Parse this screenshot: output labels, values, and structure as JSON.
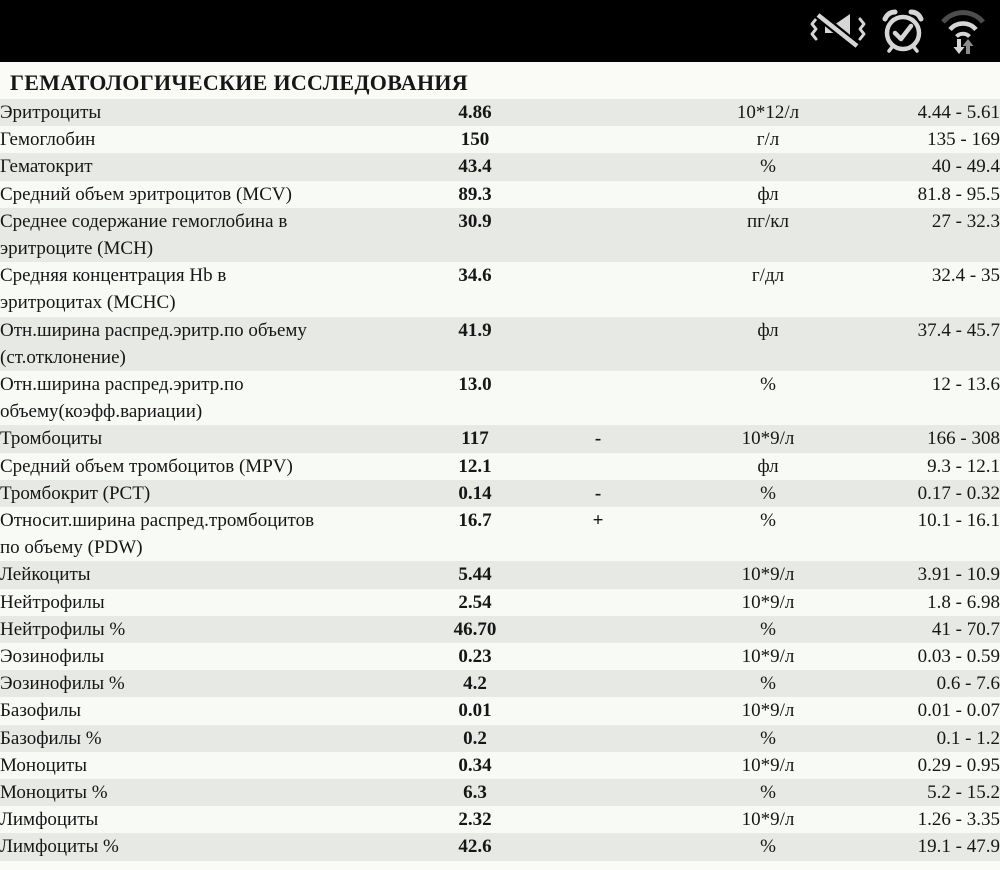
{
  "status_bar": {
    "icons": [
      {
        "name": "vibrate-mute-icon"
      },
      {
        "name": "alarm-set-icon"
      },
      {
        "name": "wifi-data-transfer-icon"
      }
    ]
  },
  "report": {
    "section_title": "ГЕМАТОЛОГИЧЕСКИЕ ИССЛЕДОВАНИЯ",
    "columns": [
      "test",
      "value",
      "flag",
      "unit",
      "reference"
    ],
    "rows": [
      {
        "test": "Эритроциты",
        "value": "4.86",
        "flag": "",
        "unit": "10*12/л",
        "reference": "4.44 - 5.61"
      },
      {
        "test": "Гемоглобин",
        "value": "150",
        "flag": "",
        "unit": "г/л",
        "reference": "135 - 169"
      },
      {
        "test": "Гематокрит",
        "value": "43.4",
        "flag": "",
        "unit": "%",
        "reference": "40 - 49.4"
      },
      {
        "test": "Средний объем эритроцитов (MCV)",
        "value": "89.3",
        "flag": "",
        "unit": "фл",
        "reference": "81.8 - 95.5"
      },
      {
        "test": "Среднее содержание гемоглобина в\nэритроците (MCH)",
        "value": "30.9",
        "flag": "",
        "unit": "пг/кл",
        "reference": "27 - 32.3"
      },
      {
        "test": "Средняя концентрация Hb в\nэритроцитах (MCHC)",
        "value": "34.6",
        "flag": "",
        "unit": "г/дл",
        "reference": "32.4 - 35"
      },
      {
        "test": "Отн.ширина распред.эритр.по объему\n(ст.отклонение)",
        "value": "41.9",
        "flag": "",
        "unit": "фл",
        "reference": "37.4 - 45.7"
      },
      {
        "test": "Отн.ширина распред.эритр.по\nобъему(коэфф.вариации)",
        "value": "13.0",
        "flag": "",
        "unit": "%",
        "reference": "12 - 13.6"
      },
      {
        "test": "Тромбоциты",
        "value": "117",
        "flag": "-",
        "unit": "10*9/л",
        "reference": "166 - 308"
      },
      {
        "test": "Средний объем тромбоцитов (MPV)",
        "value": "12.1",
        "flag": "",
        "unit": "фл",
        "reference": "9.3 - 12.1"
      },
      {
        "test": "Тромбокрит (PCT)",
        "value": "0.14",
        "flag": "-",
        "unit": "%",
        "reference": "0.17 - 0.32"
      },
      {
        "test": "Относит.ширина распред.тромбоцитов\nпо объему (PDW)",
        "value": "16.7",
        "flag": "+",
        "unit": "%",
        "reference": "10.1 - 16.1"
      },
      {
        "test": "Лейкоциты",
        "value": "5.44",
        "flag": "",
        "unit": "10*9/л",
        "reference": "3.91 - 10.9"
      },
      {
        "test": "Нейтрофилы",
        "value": "2.54",
        "flag": "",
        "unit": "10*9/л",
        "reference": "1.8 - 6.98"
      },
      {
        "test": "Нейтрофилы %",
        "value": "46.70",
        "flag": "",
        "unit": "%",
        "reference": "41 - 70.7"
      },
      {
        "test": "Эозинофилы",
        "value": "0.23",
        "flag": "",
        "unit": "10*9/л",
        "reference": "0.03 - 0.59"
      },
      {
        "test": "Эозинофилы %",
        "value": "4.2",
        "flag": "",
        "unit": "%",
        "reference": "0.6 - 7.6"
      },
      {
        "test": "Базофилы",
        "value": "0.01",
        "flag": "",
        "unit": "10*9/л",
        "reference": "0.01 - 0.07"
      },
      {
        "test": "Базофилы %",
        "value": "0.2",
        "flag": "",
        "unit": "%",
        "reference": "0.1 - 1.2"
      },
      {
        "test": "Моноциты",
        "value": "0.34",
        "flag": "",
        "unit": "10*9/л",
        "reference": "0.29 - 0.95"
      },
      {
        "test": "Моноциты %",
        "value": "6.3",
        "flag": "",
        "unit": "%",
        "reference": "5.2 - 15.2"
      },
      {
        "test": "Лимфоциты",
        "value": "2.32",
        "flag": "",
        "unit": "10*9/л",
        "reference": "1.26 - 3.35"
      },
      {
        "test": "Лимфоциты %",
        "value": "42.6",
        "flag": "",
        "unit": "%",
        "reference": "19.1 - 47.9"
      }
    ]
  },
  "colors": {
    "status_bar_bg": "#000000",
    "icon_light": "#d6d6d6",
    "icon_dim": "#8a8a8a",
    "icon_dark": "#4d4d4d",
    "row_shaded": "#e7e9e4",
    "row_plain": "#f8faf5",
    "page_bg": "#fafbf7",
    "text": "#161616"
  }
}
